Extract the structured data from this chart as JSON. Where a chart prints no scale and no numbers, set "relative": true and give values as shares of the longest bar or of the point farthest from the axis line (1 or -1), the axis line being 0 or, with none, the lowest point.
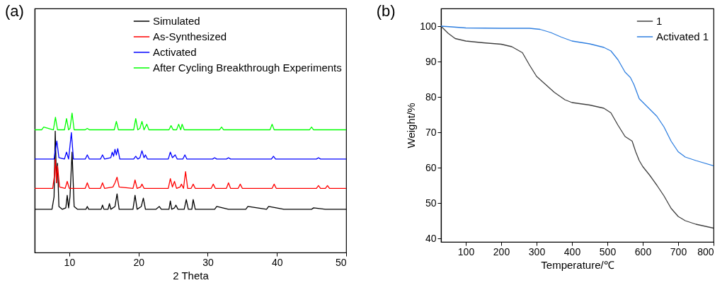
{
  "chart_data": [
    {
      "type": "line",
      "title": "(a)",
      "xlabel": "2 Theta",
      "relative": true,
      "xlim": [
        5,
        50
      ],
      "xticks": [
        10,
        20,
        30,
        40,
        50
      ],
      "tick_labels": "x",
      "legend": "top right",
      "grid": false,
      "line_style": "solid",
      "marker": "none",
      "series": [
        {
          "name": "Simulated",
          "color": "#000000",
          "x": [
            5,
            7.5,
            7.8,
            7.97,
            8.15,
            8.3,
            8.5,
            9.0,
            9.5,
            9.7,
            9.9,
            10.1,
            10.4,
            10.7,
            11.2,
            12.4,
            12.6,
            12.8,
            14.6,
            14.8,
            15.0,
            15.6,
            15.8,
            16.0,
            16.6,
            16.9,
            17.2,
            19.2,
            19.5,
            19.8,
            20.4,
            20.7,
            21.0,
            22.5,
            23.0,
            23.3,
            24.4,
            24.6,
            24.8,
            25.2,
            25.4,
            25.7,
            26.6,
            26.9,
            27.2,
            27.7,
            27.9,
            28.2,
            31,
            31.3,
            33,
            35.5,
            35.8,
            38.5,
            38.8,
            41,
            45,
            45.3,
            47,
            50
          ],
          "values": [
            0.31,
            0.31,
            0.4,
            0.87,
            0.5,
            0.64,
            0.33,
            0.31,
            0.32,
            0.41,
            0.32,
            0.4,
            0.72,
            0.33,
            0.31,
            0.31,
            0.33,
            0.31,
            0.31,
            0.34,
            0.31,
            0.31,
            0.35,
            0.31,
            0.33,
            0.42,
            0.31,
            0.31,
            0.41,
            0.31,
            0.33,
            0.39,
            0.31,
            0.31,
            0.33,
            0.31,
            0.31,
            0.37,
            0.31,
            0.32,
            0.34,
            0.31,
            0.31,
            0.38,
            0.31,
            0.31,
            0.38,
            0.31,
            0.31,
            0.33,
            0.31,
            0.31,
            0.33,
            0.31,
            0.33,
            0.31,
            0.31,
            0.32,
            0.31,
            0.31
          ]
        },
        {
          "name": "As-Synthesized",
          "color": "#ff0000",
          "x": [
            5,
            7.6,
            7.85,
            8.0,
            8.15,
            8.3,
            8.6,
            9.4,
            9.7,
            10.0,
            12.3,
            12.6,
            12.9,
            14.5,
            14.8,
            15.1,
            16.3,
            16.6,
            16.9,
            17.2,
            19.2,
            19.5,
            19.8,
            20.3,
            20.5,
            20.8,
            24.3,
            24.6,
            24.9,
            25.2,
            25.5,
            26.0,
            26.2,
            26.5,
            26.8,
            27.1,
            27.6,
            27.9,
            28.2,
            30.5,
            30.8,
            31.1,
            32.7,
            33.0,
            33.3,
            34.4,
            34.7,
            35.0,
            39.3,
            39.6,
            39.9,
            45.7,
            46.0,
            46.3,
            47.0,
            47.3,
            47.6,
            50
          ],
          "values": [
            0.46,
            0.46,
            0.55,
            0.67,
            0.5,
            0.62,
            0.47,
            0.46,
            0.51,
            0.46,
            0.46,
            0.5,
            0.46,
            0.46,
            0.5,
            0.46,
            0.47,
            0.5,
            0.54,
            0.47,
            0.46,
            0.52,
            0.46,
            0.47,
            0.49,
            0.46,
            0.46,
            0.53,
            0.47,
            0.51,
            0.46,
            0.47,
            0.49,
            0.46,
            0.58,
            0.46,
            0.46,
            0.49,
            0.46,
            0.46,
            0.49,
            0.46,
            0.46,
            0.5,
            0.46,
            0.46,
            0.49,
            0.46,
            0.46,
            0.49,
            0.46,
            0.46,
            0.48,
            0.46,
            0.46,
            0.48,
            0.46,
            0.46
          ]
        },
        {
          "name": "Activated",
          "color": "#0000ff",
          "x": [
            5,
            7.8,
            8.0,
            8.2,
            8.5,
            9.3,
            9.6,
            9.9,
            10.3,
            10.6,
            12.3,
            12.6,
            12.9,
            14.5,
            14.8,
            15.1,
            16.0,
            16.2,
            16.4,
            16.6,
            16.8,
            17.0,
            17.3,
            19.3,
            19.6,
            19.9,
            20.2,
            20.5,
            20.8,
            21.0,
            21.3,
            24.3,
            24.6,
            24.9,
            25.3,
            25.6,
            26.4,
            26.7,
            27.0,
            30.7,
            31.0,
            31.3,
            32.7,
            33.0,
            33.3,
            39.2,
            39.5,
            39.8,
            45.7,
            46.0,
            46.3,
            50
          ],
          "values": [
            0.67,
            0.67,
            0.74,
            0.8,
            0.68,
            0.67,
            0.72,
            0.67,
            0.86,
            0.67,
            0.67,
            0.7,
            0.67,
            0.67,
            0.7,
            0.67,
            0.68,
            0.72,
            0.69,
            0.74,
            0.7,
            0.745,
            0.67,
            0.67,
            0.69,
            0.67,
            0.68,
            0.73,
            0.68,
            0.7,
            0.67,
            0.67,
            0.72,
            0.68,
            0.7,
            0.67,
            0.67,
            0.7,
            0.67,
            0.67,
            0.68,
            0.67,
            0.67,
            0.68,
            0.67,
            0.67,
            0.69,
            0.67,
            0.67,
            0.68,
            0.67,
            0.67
          ]
        },
        {
          "name": "After Cycling Breakthrough Experiments",
          "color": "#00ff00",
          "x": [
            5,
            6.0,
            6.3,
            7.7,
            8.0,
            8.3,
            9.3,
            9.6,
            9.9,
            10.1,
            10.4,
            10.7,
            12.3,
            12.6,
            12.9,
            16.5,
            16.8,
            17.1,
            19.3,
            19.6,
            19.9,
            20.2,
            20.5,
            20.8,
            21.2,
            21.5,
            24.4,
            24.7,
            25.0,
            25.5,
            25.8,
            26.1,
            26.3,
            26.6,
            31.7,
            32.0,
            32.3,
            39.0,
            39.3,
            39.6,
            44.7,
            45.0,
            45.3,
            50
          ],
          "values": [
            0.88,
            0.88,
            0.9,
            0.88,
            0.97,
            0.88,
            0.88,
            0.96,
            0.88,
            0.89,
            1,
            0.88,
            0.88,
            0.89,
            0.88,
            0.88,
            0.94,
            0.88,
            0.88,
            0.96,
            0.88,
            0.89,
            0.94,
            0.88,
            0.92,
            0.88,
            0.88,
            0.91,
            0.88,
            0.88,
            0.92,
            0.88,
            0.92,
            0.88,
            0.88,
            0.9,
            0.88,
            0.88,
            0.92,
            0.88,
            0.88,
            0.9,
            0.88,
            0.88
          ]
        }
      ]
    },
    {
      "type": "line",
      "title": "(b)",
      "xlabel": "Temperature/℃",
      "ylabel": "Weight/%",
      "xlim": [
        30,
        800
      ],
      "xticks": [
        100,
        200,
        300,
        400,
        500,
        600,
        700,
        800
      ],
      "ylim": [
        39,
        105
      ],
      "yticks": [
        40,
        50,
        60,
        70,
        80,
        90,
        100
      ],
      "legend": "top right",
      "grid": false,
      "line_style": "solid",
      "marker": "none",
      "series": [
        {
          "name": "1",
          "color": "#404040",
          "x": [
            30,
            50,
            70,
            100,
            150,
            200,
            230,
            260,
            280,
            300,
            320,
            350,
            380,
            400,
            450,
            490,
            510,
            530,
            550,
            570,
            580,
            590,
            600,
            620,
            640,
            660,
            680,
            700,
            720,
            750,
            800
          ],
          "values": [
            100,
            98,
            96.5,
            95.8,
            95.3,
            94.9,
            94.2,
            92.5,
            89,
            85.8,
            84,
            81.3,
            79.2,
            78.4,
            77.7,
            76.8,
            75.5,
            72,
            68.8,
            67.5,
            64.5,
            62,
            60.3,
            57.8,
            55,
            52,
            48.5,
            46.2,
            45,
            44,
            42.9
          ]
        },
        {
          "name": "Activated 1",
          "color": "#2f7fe0",
          "x": [
            30,
            60,
            100,
            200,
            280,
            310,
            340,
            370,
            400,
            450,
            490,
            510,
            530,
            550,
            565,
            575,
            590,
            610,
            640,
            660,
            680,
            700,
            720,
            750,
            800
          ],
          "values": [
            100,
            99.8,
            99.5,
            99.4,
            99.4,
            99.1,
            98.2,
            96.9,
            95.8,
            95,
            94,
            93,
            90.5,
            87,
            85.5,
            83.5,
            79.5,
            77.5,
            74.5,
            71.5,
            67.5,
            64.5,
            63,
            62,
            60.5
          ]
        }
      ]
    }
  ]
}
